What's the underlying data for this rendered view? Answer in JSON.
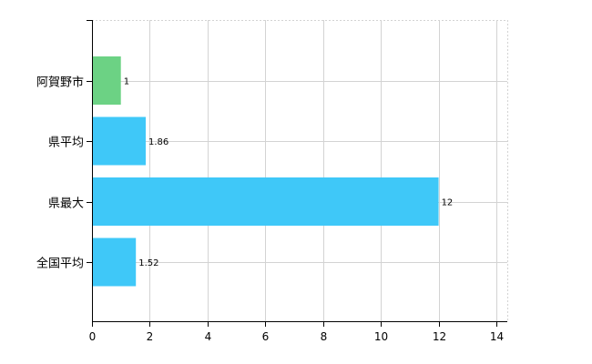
{
  "chart_data": {
    "type": "bar",
    "orientation": "horizontal",
    "categories": [
      "阿賀野市",
      "県平均",
      "県最大",
      "全国平均"
    ],
    "values": [
      1,
      1.86,
      12,
      1.52
    ],
    "data_labels": [
      "1",
      "1.86",
      "12",
      "1.52"
    ],
    "xlim": [
      0,
      14
    ],
    "x_ticks": [
      0,
      2,
      4,
      6,
      8,
      10,
      12,
      14
    ],
    "grid": true,
    "legend": "none",
    "colors": [
      "#6cd284",
      "#3fc8f8",
      "#3fc8f8",
      "#3fc8f8"
    ]
  }
}
